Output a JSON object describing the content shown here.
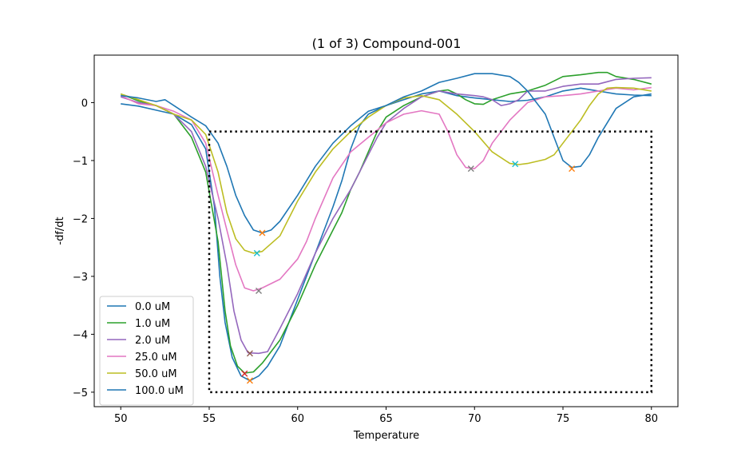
{
  "chart_data": {
    "type": "line",
    "title": "(1 of 3) Compound-001",
    "xlabel": "Temperature",
    "ylabel": "-df/dt",
    "xlim": [
      48.5,
      81.5
    ],
    "ylim": [
      -5.25,
      0.82
    ],
    "xticks": [
      50,
      55,
      60,
      65,
      70,
      75,
      80
    ],
    "yticks": [
      0,
      -1,
      -2,
      -3,
      -4,
      -5
    ],
    "xtick_labels": [
      "50",
      "55",
      "60",
      "65",
      "70",
      "75",
      "80"
    ],
    "ytick_labels": [
      "0",
      "−1",
      "−2",
      "−3",
      "−4",
      "−5"
    ],
    "grid": false,
    "legend_position": "lower-left",
    "series": [
      {
        "name": "0.0 uM",
        "color": "#1f77b4",
        "points": [
          [
            50,
            -0.02
          ],
          [
            51,
            -0.06
          ],
          [
            52,
            -0.13
          ],
          [
            53,
            -0.2
          ],
          [
            54,
            -0.38
          ],
          [
            54.8,
            -0.8
          ],
          [
            55.3,
            -1.8
          ],
          [
            55.6,
            -3.0
          ],
          [
            55.9,
            -3.8
          ],
          [
            56.3,
            -4.4
          ],
          [
            56.8,
            -4.72
          ],
          [
            57.3,
            -4.8
          ],
          [
            57.8,
            -4.72
          ],
          [
            58.3,
            -4.55
          ],
          [
            59,
            -4.2
          ],
          [
            60,
            -3.4
          ],
          [
            61,
            -2.6
          ],
          [
            62,
            -1.8
          ],
          [
            62.5,
            -1.35
          ],
          [
            63,
            -0.8
          ],
          [
            63.5,
            -0.4
          ],
          [
            64,
            -0.2
          ],
          [
            65,
            -0.05
          ],
          [
            66,
            0.05
          ],
          [
            67,
            0.15
          ],
          [
            68,
            0.2
          ],
          [
            69,
            0.12
          ],
          [
            70,
            0.08
          ],
          [
            71,
            0.05
          ],
          [
            72,
            0.02
          ],
          [
            73,
            0.04
          ],
          [
            74,
            0.1
          ],
          [
            75,
            0.2
          ],
          [
            76,
            0.25
          ],
          [
            77,
            0.2
          ],
          [
            78,
            0.15
          ],
          [
            79,
            0.13
          ],
          [
            80,
            0.12
          ]
        ]
      },
      {
        "name": "1.0 uM",
        "color": "#2ca02c",
        "points": [
          [
            50,
            0.15
          ],
          [
            51,
            0.03
          ],
          [
            52,
            -0.05
          ],
          [
            53,
            -0.2
          ],
          [
            54,
            -0.6
          ],
          [
            54.8,
            -1.2
          ],
          [
            55.5,
            -2.4
          ],
          [
            55.9,
            -3.6
          ],
          [
            56.2,
            -4.2
          ],
          [
            56.6,
            -4.55
          ],
          [
            57,
            -4.67
          ],
          [
            57.5,
            -4.65
          ],
          [
            58,
            -4.5
          ],
          [
            59,
            -4.1
          ],
          [
            60,
            -3.5
          ],
          [
            61,
            -2.8
          ],
          [
            62,
            -2.2
          ],
          [
            62.5,
            -1.9
          ],
          [
            63,
            -1.5
          ],
          [
            63.5,
            -1.2
          ],
          [
            64,
            -0.85
          ],
          [
            64.5,
            -0.5
          ],
          [
            65,
            -0.25
          ],
          [
            66,
            -0.05
          ],
          [
            67,
            0.1
          ],
          [
            68,
            0.2
          ],
          [
            68.5,
            0.22
          ],
          [
            69,
            0.15
          ],
          [
            69.5,
            0.05
          ],
          [
            70,
            -0.02
          ],
          [
            70.5,
            -0.03
          ],
          [
            71,
            0.05
          ],
          [
            72,
            0.15
          ],
          [
            73,
            0.2
          ],
          [
            74,
            0.3
          ],
          [
            75,
            0.45
          ],
          [
            76,
            0.48
          ],
          [
            77,
            0.52
          ],
          [
            77.5,
            0.52
          ],
          [
            78,
            0.45
          ],
          [
            79,
            0.4
          ],
          [
            80,
            0.32
          ]
        ]
      },
      {
        "name": "2.0 uM",
        "color": "#9467bd",
        "points": [
          [
            50,
            0.1
          ],
          [
            51,
            0.0
          ],
          [
            52,
            -0.05
          ],
          [
            53,
            -0.2
          ],
          [
            54,
            -0.5
          ],
          [
            54.8,
            -1.1
          ],
          [
            55.5,
            -2.0
          ],
          [
            56,
            -2.8
          ],
          [
            56.4,
            -3.6
          ],
          [
            56.8,
            -4.1
          ],
          [
            57.2,
            -4.32
          ],
          [
            57.8,
            -4.33
          ],
          [
            58.3,
            -4.3
          ],
          [
            59,
            -3.9
          ],
          [
            60,
            -3.3
          ],
          [
            61,
            -2.6
          ],
          [
            62,
            -2.0
          ],
          [
            63,
            -1.5
          ],
          [
            64,
            -0.9
          ],
          [
            64.5,
            -0.6
          ],
          [
            65,
            -0.35
          ],
          [
            66,
            -0.1
          ],
          [
            67,
            0.1
          ],
          [
            68,
            0.2
          ],
          [
            69,
            0.15
          ],
          [
            70,
            0.12
          ],
          [
            70.5,
            0.1
          ],
          [
            71,
            0.05
          ],
          [
            71.5,
            -0.05
          ],
          [
            72,
            -0.02
          ],
          [
            72.5,
            0.05
          ],
          [
            73,
            0.2
          ],
          [
            74,
            0.2
          ],
          [
            75,
            0.28
          ],
          [
            76,
            0.32
          ],
          [
            77,
            0.32
          ],
          [
            78,
            0.4
          ],
          [
            79,
            0.42
          ],
          [
            80,
            0.43
          ]
        ]
      },
      {
        "name": "25.0 uM",
        "color": "#e377c2",
        "points": [
          [
            50,
            0.12
          ],
          [
            51,
            -0.02
          ],
          [
            52,
            -0.05
          ],
          [
            53,
            -0.15
          ],
          [
            54,
            -0.3
          ],
          [
            54.8,
            -0.7
          ],
          [
            55.5,
            -1.6
          ],
          [
            56,
            -2.2
          ],
          [
            56.5,
            -2.8
          ],
          [
            57,
            -3.2
          ],
          [
            57.5,
            -3.25
          ],
          [
            58,
            -3.2
          ],
          [
            59,
            -3.05
          ],
          [
            60,
            -2.7
          ],
          [
            60.5,
            -2.4
          ],
          [
            61,
            -2.0
          ],
          [
            62,
            -1.3
          ],
          [
            63,
            -0.85
          ],
          [
            64,
            -0.6
          ],
          [
            65,
            -0.35
          ],
          [
            66,
            -0.2
          ],
          [
            67,
            -0.14
          ],
          [
            68,
            -0.2
          ],
          [
            68.5,
            -0.5
          ],
          [
            69,
            -0.9
          ],
          [
            69.5,
            -1.12
          ],
          [
            70,
            -1.14
          ],
          [
            70.5,
            -1.0
          ],
          [
            71,
            -0.7
          ],
          [
            72,
            -0.3
          ],
          [
            73,
            0.0
          ],
          [
            74,
            0.1
          ],
          [
            75,
            0.12
          ],
          [
            76,
            0.15
          ],
          [
            77,
            0.2
          ],
          [
            78,
            0.25
          ],
          [
            79,
            0.22
          ],
          [
            80,
            0.26
          ]
        ]
      },
      {
        "name": "50.0 uM",
        "color": "#bcbd22",
        "points": [
          [
            50,
            0.15
          ],
          [
            51,
            0.05
          ],
          [
            52,
            -0.05
          ],
          [
            53,
            -0.2
          ],
          [
            54,
            -0.3
          ],
          [
            54.8,
            -0.55
          ],
          [
            55.5,
            -1.2
          ],
          [
            56,
            -1.9
          ],
          [
            56.5,
            -2.35
          ],
          [
            57,
            -2.55
          ],
          [
            57.5,
            -2.6
          ],
          [
            58,
            -2.57
          ],
          [
            59,
            -2.3
          ],
          [
            60,
            -1.7
          ],
          [
            61,
            -1.2
          ],
          [
            62,
            -0.8
          ],
          [
            63,
            -0.5
          ],
          [
            64,
            -0.25
          ],
          [
            65,
            -0.05
          ],
          [
            66,
            0.08
          ],
          [
            67,
            0.12
          ],
          [
            68,
            0.05
          ],
          [
            69,
            -0.2
          ],
          [
            70,
            -0.5
          ],
          [
            71,
            -0.85
          ],
          [
            72,
            -1.05
          ],
          [
            72.5,
            -1.07
          ],
          [
            73,
            -1.05
          ],
          [
            74,
            -0.98
          ],
          [
            74.5,
            -0.9
          ],
          [
            75,
            -0.7
          ],
          [
            76,
            -0.3
          ],
          [
            76.5,
            -0.05
          ],
          [
            77,
            0.15
          ],
          [
            77.5,
            0.25
          ],
          [
            78,
            0.26
          ],
          [
            79,
            0.25
          ],
          [
            80,
            0.2
          ]
        ]
      },
      {
        "name": "100.0 uM",
        "color": "#1f77b4",
        "points": [
          [
            50,
            0.12
          ],
          [
            51,
            0.08
          ],
          [
            52,
            0.02
          ],
          [
            52.5,
            0.05
          ],
          [
            53,
            -0.05
          ],
          [
            54,
            -0.25
          ],
          [
            54.8,
            -0.4
          ],
          [
            55.5,
            -0.7
          ],
          [
            56,
            -1.1
          ],
          [
            56.5,
            -1.6
          ],
          [
            57,
            -1.95
          ],
          [
            57.5,
            -2.2
          ],
          [
            58,
            -2.25
          ],
          [
            58.5,
            -2.2
          ],
          [
            59,
            -2.05
          ],
          [
            60,
            -1.6
          ],
          [
            61,
            -1.1
          ],
          [
            62,
            -0.7
          ],
          [
            63,
            -0.4
          ],
          [
            64,
            -0.15
          ],
          [
            65,
            -0.05
          ],
          [
            66,
            0.1
          ],
          [
            67,
            0.2
          ],
          [
            68,
            0.35
          ],
          [
            69,
            0.42
          ],
          [
            70,
            0.5
          ],
          [
            71,
            0.5
          ],
          [
            72,
            0.45
          ],
          [
            72.5,
            0.35
          ],
          [
            73,
            0.2
          ],
          [
            74,
            -0.2
          ],
          [
            74.5,
            -0.6
          ],
          [
            75,
            -1.0
          ],
          [
            75.5,
            -1.12
          ],
          [
            76,
            -1.1
          ],
          [
            76.5,
            -0.9
          ],
          [
            77,
            -0.6
          ],
          [
            78,
            -0.1
          ],
          [
            79,
            0.1
          ],
          [
            80,
            0.15
          ]
        ]
      }
    ],
    "markers": [
      {
        "x": 57.3,
        "y": -4.8,
        "color": "#ff7f0e"
      },
      {
        "x": 57.0,
        "y": -4.68,
        "color": "#d62728"
      },
      {
        "x": 57.3,
        "y": -4.33,
        "color": "#8c564b"
      },
      {
        "x": 57.8,
        "y": -3.25,
        "color": "#7f7f7f"
      },
      {
        "x": 57.7,
        "y": -2.6,
        "color": "#17becf"
      },
      {
        "x": 58.0,
        "y": -2.25,
        "color": "#ff7f0e"
      },
      {
        "x": 69.8,
        "y": -1.14,
        "color": "#7f7f7f"
      },
      {
        "x": 72.3,
        "y": -1.06,
        "color": "#17becf"
      },
      {
        "x": 75.5,
        "y": -1.14,
        "color": "#ff7f0e"
      }
    ],
    "box": {
      "x0": 55,
      "x1": 80,
      "y0": -5,
      "y1": -0.5
    }
  }
}
